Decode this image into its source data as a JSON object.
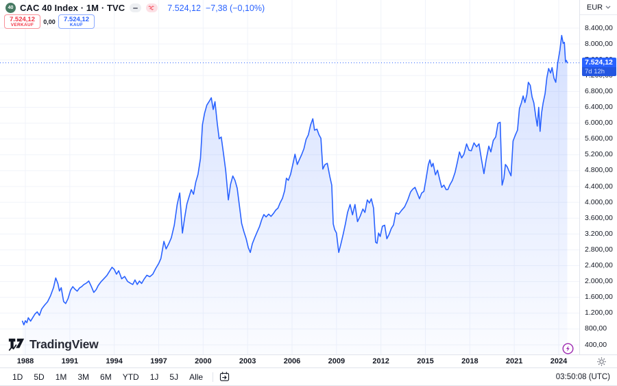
{
  "topbar": {
    "symbol_logo": "40",
    "title": "CAC 40 Index · 1M · TVC",
    "quote": {
      "last": "7.524,12",
      "change": "−7,38 (−0,10%)"
    }
  },
  "order_panel": {
    "sell": {
      "price": "7.524,12",
      "label": "VERKAUF"
    },
    "spread": "0,00",
    "buy": {
      "price": "7.524,12",
      "label": "KAUF"
    }
  },
  "price_axis": {
    "currency": "EUR",
    "badge": {
      "price": "7.524,12",
      "countdown": "7d 12h"
    }
  },
  "watermark": "TradingView",
  "toolbar": {
    "ranges": [
      "1D",
      "5D",
      "1M",
      "3M",
      "6M",
      "YTD",
      "1J",
      "5J",
      "Alle"
    ],
    "clock": "03:50:08 (UTC)"
  },
  "colors": {
    "accent": "#2962FF",
    "sell_red": "#F23645",
    "buy_blue": "#2962FF",
    "grid": "#F0F3FA",
    "border": "#E0E3EB",
    "text": "#131722",
    "muted": "#787B86",
    "badge_bg": "#2962FF",
    "lightning_purple": "#9C27B0",
    "logo_green": "#477A63",
    "area_top": "rgba(41,98,255,0.20)",
    "area_bottom": "rgba(41,98,255,0.02)"
  },
  "chart_data": {
    "type": "area",
    "title": "CAC 40 Index",
    "interval": "1M",
    "exchange": "TVC",
    "currency": "EUR",
    "last": 7524.12,
    "change": -7.38,
    "change_pct": -0.1,
    "bar_countdown": "7d 12h",
    "legend": [],
    "grid": true,
    "y_ticks": [
      8400,
      8000,
      7600,
      7200,
      6800,
      6400,
      6000,
      5600,
      5200,
      4800,
      4400,
      4000,
      3600,
      3200,
      2800,
      2400,
      2000,
      1600,
      1200,
      800,
      400
    ],
    "x_ticks": [
      1988,
      1991,
      1994,
      1997,
      2000,
      2003,
      2006,
      2009,
      2012,
      2015,
      2018,
      2021,
      2024
    ],
    "series": [
      [
        1987.8,
        1000
      ],
      [
        1987.9,
        905
      ],
      [
        1988.0,
        1010
      ],
      [
        1988.1,
        960
      ],
      [
        1988.2,
        1085
      ],
      [
        1988.35,
        1000
      ],
      [
        1988.5,
        1090
      ],
      [
        1988.65,
        1180
      ],
      [
        1988.8,
        1235
      ],
      [
        1988.95,
        1145
      ],
      [
        1989.1,
        1305
      ],
      [
        1989.3,
        1405
      ],
      [
        1989.5,
        1490
      ],
      [
        1989.7,
        1640
      ],
      [
        1989.9,
        1850
      ],
      [
        1990.05,
        2090
      ],
      [
        1990.2,
        1945
      ],
      [
        1990.3,
        1760
      ],
      [
        1990.42,
        1845
      ],
      [
        1990.58,
        1495
      ],
      [
        1990.72,
        1445
      ],
      [
        1990.88,
        1565
      ],
      [
        1991.05,
        1780
      ],
      [
        1991.2,
        1870
      ],
      [
        1991.35,
        1805
      ],
      [
        1991.5,
        1755
      ],
      [
        1991.65,
        1835
      ],
      [
        1991.8,
        1870
      ],
      [
        1991.95,
        1925
      ],
      [
        1992.1,
        1955
      ],
      [
        1992.28,
        2012
      ],
      [
        1992.45,
        1875
      ],
      [
        1992.62,
        1725
      ],
      [
        1992.78,
        1795
      ],
      [
        1992.92,
        1900
      ],
      [
        1993.1,
        1992
      ],
      [
        1993.3,
        2070
      ],
      [
        1993.5,
        2152
      ],
      [
        1993.7,
        2272
      ],
      [
        1993.85,
        2360
      ],
      [
        1994.0,
        2305
      ],
      [
        1994.15,
        2185
      ],
      [
        1994.3,
        2272
      ],
      [
        1994.5,
        2070
      ],
      [
        1994.7,
        2128
      ],
      [
        1994.9,
        2002
      ],
      [
        1995.1,
        1955
      ],
      [
        1995.25,
        1925
      ],
      [
        1995.4,
        2040
      ],
      [
        1995.55,
        1925
      ],
      [
        1995.7,
        2012
      ],
      [
        1995.85,
        1952
      ],
      [
        1996.0,
        2052
      ],
      [
        1996.2,
        2157
      ],
      [
        1996.4,
        2122
      ],
      [
        1996.6,
        2185
      ],
      [
        1996.8,
        2330
      ],
      [
        1997.0,
        2455
      ],
      [
        1997.15,
        2582
      ],
      [
        1997.35,
        3015
      ],
      [
        1997.5,
        2825
      ],
      [
        1997.68,
        2955
      ],
      [
        1997.85,
        3105
      ],
      [
        1998.05,
        3420
      ],
      [
        1998.25,
        3950
      ],
      [
        1998.42,
        4235
      ],
      [
        1998.6,
        3225
      ],
      [
        1998.75,
        3605
      ],
      [
        1998.9,
        3955
      ],
      [
        1999.05,
        4140
      ],
      [
        1999.2,
        4320
      ],
      [
        1999.35,
        4205
      ],
      [
        1999.5,
        4505
      ],
      [
        1999.65,
        4705
      ],
      [
        1999.82,
        5105
      ],
      [
        1999.95,
        5960
      ],
      [
        2000.1,
        6255
      ],
      [
        2000.25,
        6455
      ],
      [
        2000.4,
        6545
      ],
      [
        2000.55,
        6640
      ],
      [
        2000.68,
        6345
      ],
      [
        2000.8,
        6542
      ],
      [
        2000.95,
        5995
      ],
      [
        2001.08,
        5605
      ],
      [
        2001.22,
        5650
      ],
      [
        2001.38,
        5205
      ],
      [
        2001.52,
        4805
      ],
      [
        2001.7,
        4060
      ],
      [
        2001.85,
        4455
      ],
      [
        2002.0,
        4665
      ],
      [
        2002.15,
        4552
      ],
      [
        2002.3,
        4355
      ],
      [
        2002.45,
        3905
      ],
      [
        2002.6,
        3465
      ],
      [
        2002.75,
        3258
      ],
      [
        2002.9,
        3085
      ],
      [
        2003.05,
        2855
      ],
      [
        2003.18,
        2735
      ],
      [
        2003.32,
        2955
      ],
      [
        2003.48,
        3105
      ],
      [
        2003.65,
        3255
      ],
      [
        2003.8,
        3385
      ],
      [
        2003.95,
        3560
      ],
      [
        2004.1,
        3692
      ],
      [
        2004.25,
        3632
      ],
      [
        2004.42,
        3702
      ],
      [
        2004.58,
        3645
      ],
      [
        2004.75,
        3722
      ],
      [
        2004.9,
        3802
      ],
      [
        2005.05,
        3855
      ],
      [
        2005.2,
        3992
      ],
      [
        2005.35,
        4100
      ],
      [
        2005.5,
        4295
      ],
      [
        2005.62,
        4610
      ],
      [
        2005.75,
        4555
      ],
      [
        2005.9,
        4705
      ],
      [
        2006.05,
        4955
      ],
      [
        2006.2,
        5215
      ],
      [
        2006.35,
        4955
      ],
      [
        2006.5,
        5082
      ],
      [
        2006.65,
        5205
      ],
      [
        2006.8,
        5352
      ],
      [
        2006.95,
        5590
      ],
      [
        2007.1,
        5705
      ],
      [
        2007.25,
        5952
      ],
      [
        2007.4,
        6110
      ],
      [
        2007.52,
        5822
      ],
      [
        2007.68,
        5850
      ],
      [
        2007.82,
        5705
      ],
      [
        2007.95,
        5615
      ],
      [
        2008.08,
        4840
      ],
      [
        2008.22,
        4952
      ],
      [
        2008.38,
        4985
      ],
      [
        2008.55,
        4652
      ],
      [
        2008.68,
        4435
      ],
      [
        2008.78,
        3455
      ],
      [
        2008.88,
        3310
      ],
      [
        2009.0,
        3225
      ],
      [
        2009.15,
        2735
      ],
      [
        2009.3,
        2952
      ],
      [
        2009.45,
        3195
      ],
      [
        2009.6,
        3452
      ],
      [
        2009.75,
        3745
      ],
      [
        2009.92,
        3945
      ],
      [
        2010.08,
        3685
      ],
      [
        2010.25,
        3945
      ],
      [
        2010.42,
        3512
      ],
      [
        2010.6,
        3652
      ],
      [
        2010.78,
        3830
      ],
      [
        2010.92,
        3745
      ],
      [
        2011.08,
        4060
      ],
      [
        2011.22,
        3982
      ],
      [
        2011.35,
        4090
      ],
      [
        2011.5,
        3852
      ],
      [
        2011.64,
        2992
      ],
      [
        2011.74,
        2965
      ],
      [
        2011.84,
        3225
      ],
      [
        2011.95,
        3138
      ],
      [
        2012.1,
        3395
      ],
      [
        2012.25,
        3422
      ],
      [
        2012.4,
        3080
      ],
      [
        2012.55,
        3192
      ],
      [
        2012.7,
        3340
      ],
      [
        2012.85,
        3428
      ],
      [
        2013.0,
        3733
      ],
      [
        2013.2,
        3702
      ],
      [
        2013.4,
        3800
      ],
      [
        2013.6,
        3886
      ],
      [
        2013.8,
        4052
      ],
      [
        2014.0,
        4262
      ],
      [
        2014.15,
        4332
      ],
      [
        2014.3,
        4378
      ],
      [
        2014.45,
        4235
      ],
      [
        2014.6,
        4090
      ],
      [
        2014.75,
        4235
      ],
      [
        2014.9,
        4275
      ],
      [
        2015.05,
        4605
      ],
      [
        2015.2,
        4950
      ],
      [
        2015.3,
        5072
      ],
      [
        2015.42,
        4898
      ],
      [
        2015.52,
        4985
      ],
      [
        2015.68,
        4695
      ],
      [
        2015.82,
        4812
      ],
      [
        2015.95,
        4605
      ],
      [
        2016.1,
        4378
      ],
      [
        2016.25,
        4435
      ],
      [
        2016.4,
        4320
      ],
      [
        2016.52,
        4322
      ],
      [
        2016.65,
        4442
      ],
      [
        2016.82,
        4552
      ],
      [
        2017.0,
        4750
      ],
      [
        2017.15,
        5002
      ],
      [
        2017.3,
        5272
      ],
      [
        2017.45,
        5122
      ],
      [
        2017.6,
        5215
      ],
      [
        2017.78,
        5475
      ],
      [
        2017.95,
        5315
      ],
      [
        2018.1,
        5302
      ],
      [
        2018.28,
        5502
      ],
      [
        2018.45,
        5402
      ],
      [
        2018.62,
        5475
      ],
      [
        2018.78,
        5095
      ],
      [
        2018.95,
        4725
      ],
      [
        2019.1,
        5072
      ],
      [
        2019.28,
        5418
      ],
      [
        2019.42,
        5272
      ],
      [
        2019.58,
        5562
      ],
      [
        2019.75,
        5652
      ],
      [
        2019.9,
        5995
      ],
      [
        2020.05,
        6022
      ],
      [
        2020.18,
        4435
      ],
      [
        2020.3,
        4605
      ],
      [
        2020.4,
        4955
      ],
      [
        2020.52,
        4898
      ],
      [
        2020.65,
        4782
      ],
      [
        2020.78,
        4668
      ],
      [
        2020.92,
        5552
      ],
      [
        2021.08,
        5705
      ],
      [
        2021.22,
        5825
      ],
      [
        2021.35,
        6370
      ],
      [
        2021.48,
        6510
      ],
      [
        2021.6,
        6688
      ],
      [
        2021.72,
        6522
      ],
      [
        2021.85,
        6722
      ],
      [
        2021.95,
        7032
      ],
      [
        2022.08,
        6952
      ],
      [
        2022.2,
        6662
      ],
      [
        2022.32,
        6512
      ],
      [
        2022.45,
        6168
      ],
      [
        2022.55,
        5925
      ],
      [
        2022.65,
        6398
      ],
      [
        2022.74,
        5792
      ],
      [
        2022.85,
        6268
      ],
      [
        2022.95,
        6515
      ],
      [
        2023.08,
        6745
      ],
      [
        2023.2,
        7148
      ],
      [
        2023.32,
        7380
      ],
      [
        2023.45,
        7265
      ],
      [
        2023.55,
        7402
      ],
      [
        2023.68,
        7135
      ],
      [
        2023.8,
        7032
      ],
      [
        2023.92,
        7495
      ],
      [
        2024.08,
        7842
      ],
      [
        2024.2,
        8215
      ],
      [
        2024.3,
        8015
      ],
      [
        2024.38,
        8042
      ],
      [
        2024.46,
        7552
      ],
      [
        2024.52,
        7582
      ],
      [
        2024.58,
        7524
      ]
    ]
  }
}
